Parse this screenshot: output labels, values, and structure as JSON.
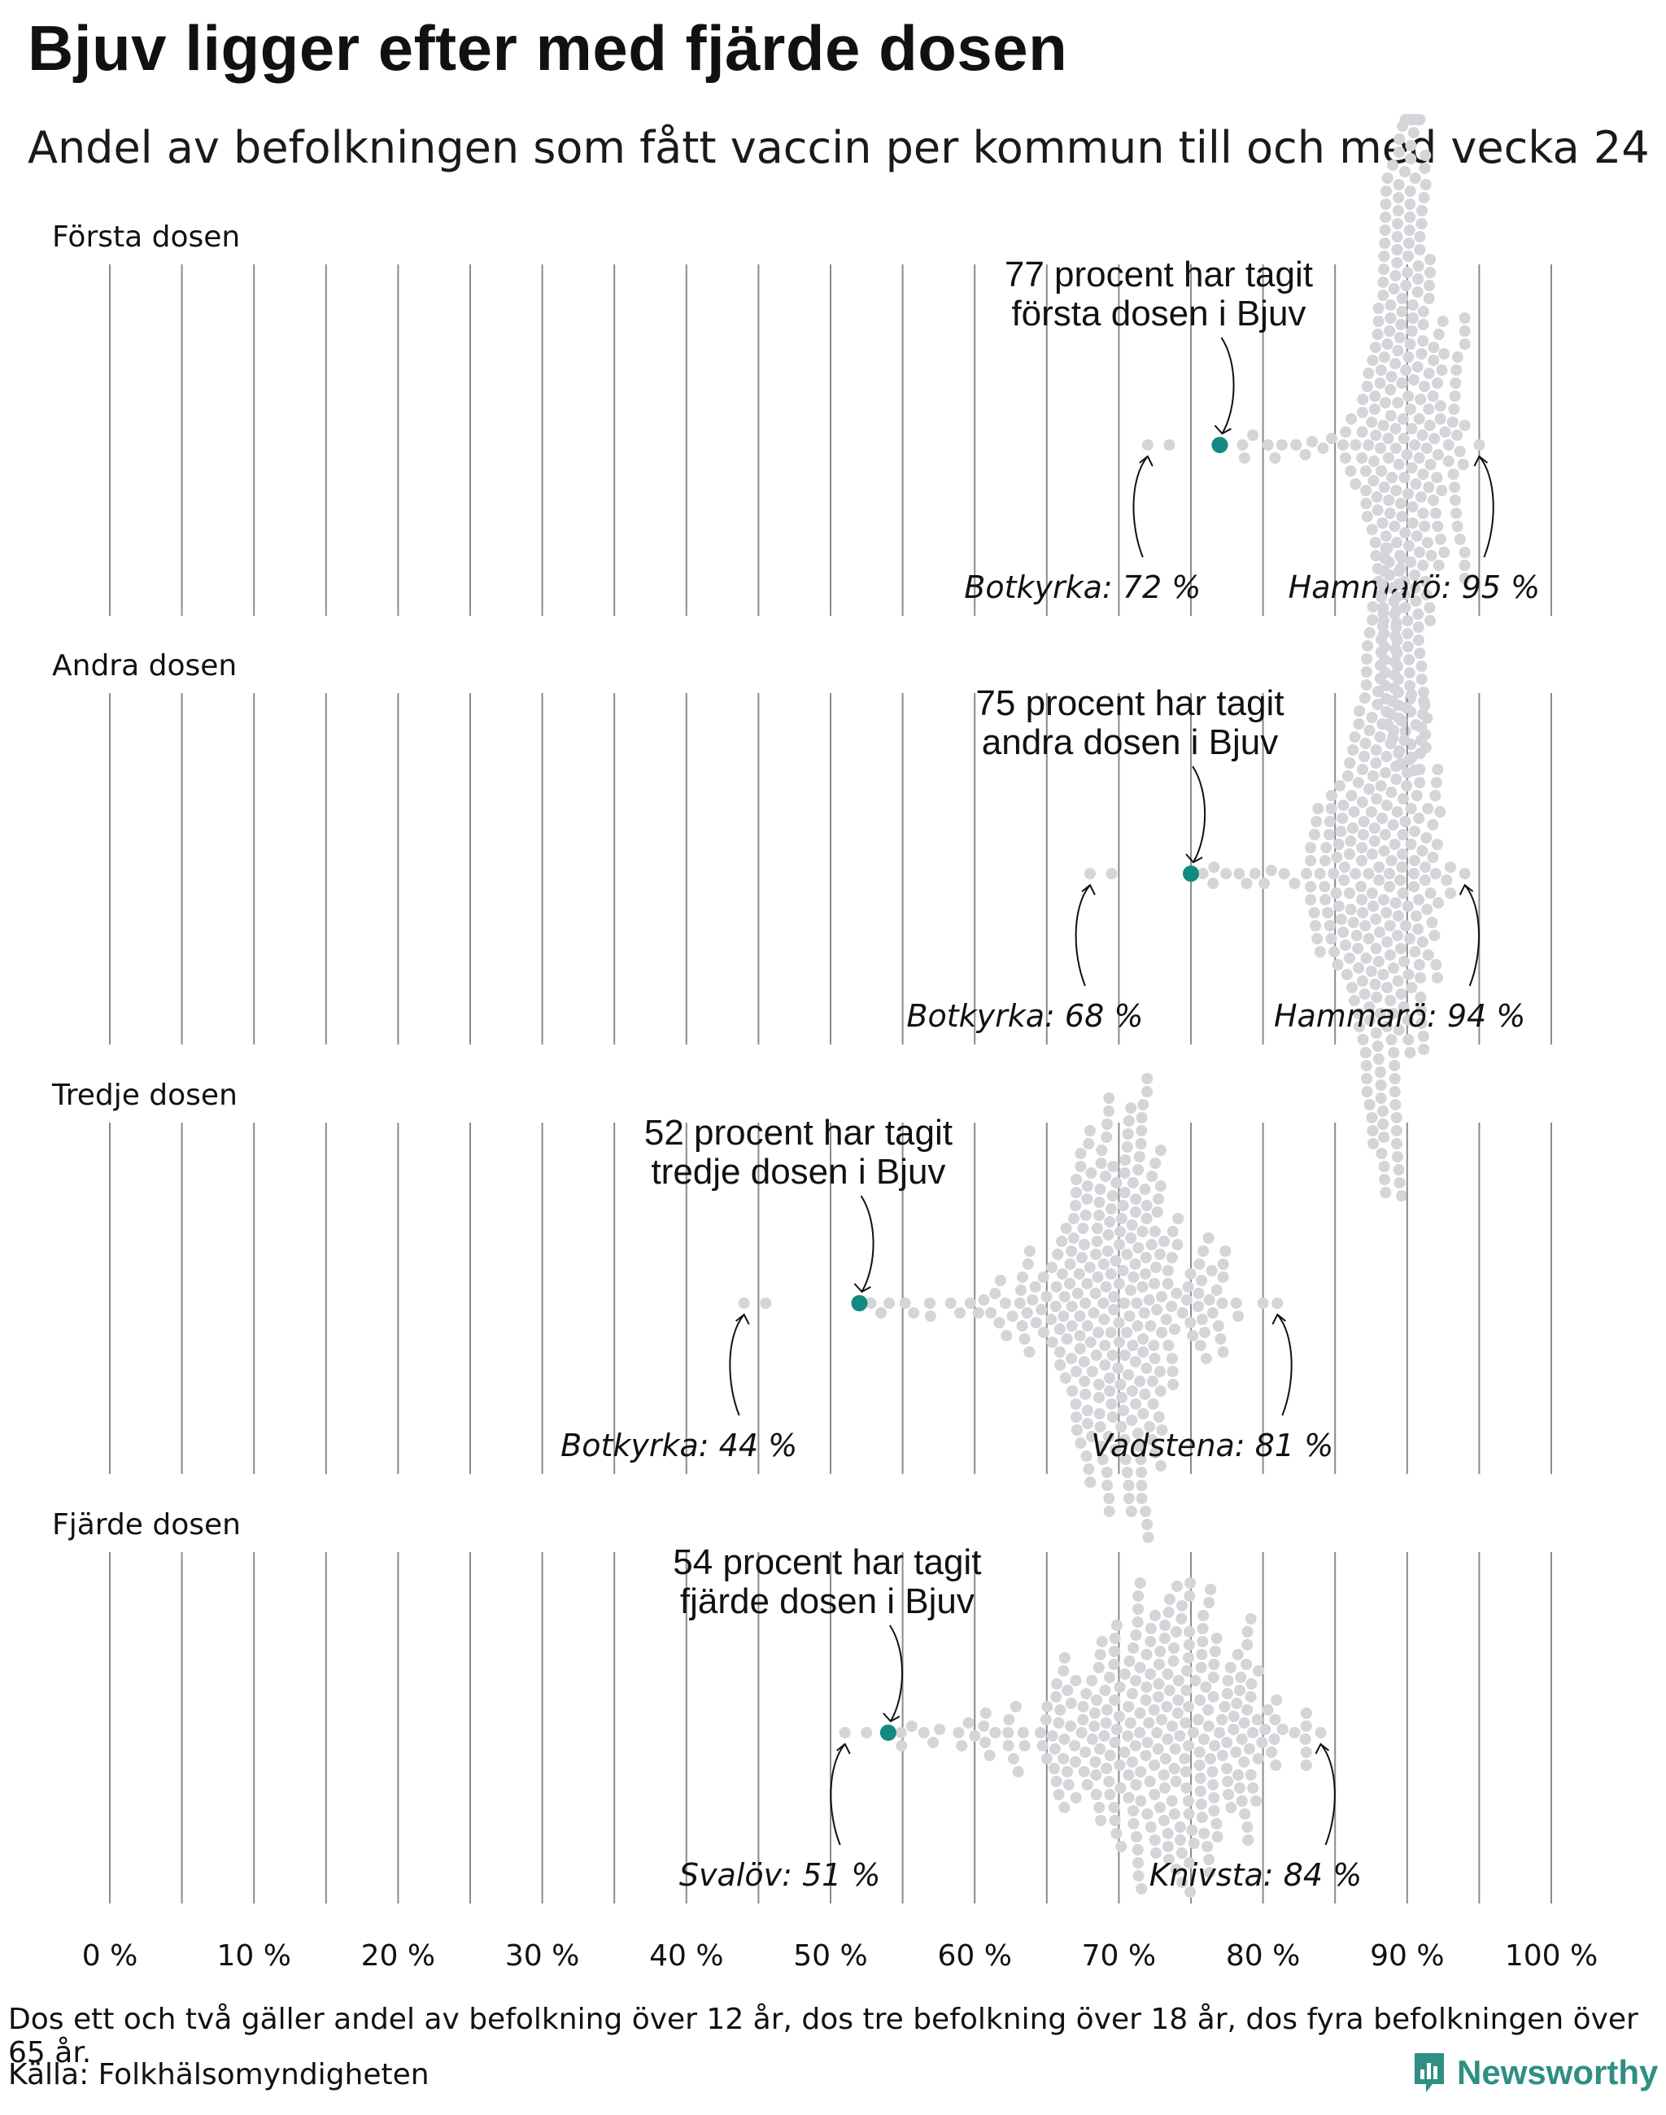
{
  "title": "Bjuv ligger efter med fjärde dosen",
  "subtitle": "Andel av befolkningen som fått vaccin per kommun till och med vecka 24",
  "footnote": "Dos ett och två gäller andel av befolkning över 12 år, dos tre befolkning över 18 år, dos fyra befolkningen över 65 år.",
  "source": "Källa: Folkhälsomyndigheten",
  "brand": "Newsworthy",
  "colors": {
    "highlight": "#138a80",
    "dots": "#d4d4d9",
    "grid": "#8a8a8a",
    "text": "#111111"
  },
  "chart_data": {
    "type": "scatter",
    "subtype": "beeswarm",
    "x_ticks": [
      0,
      10,
      20,
      30,
      40,
      50,
      60,
      70,
      80,
      90,
      100
    ],
    "x_tick_labels": [
      "0 %",
      "10 %",
      "20 %",
      "30 %",
      "40 %",
      "50 %",
      "60 %",
      "70 %",
      "80 %",
      "90 %",
      "100 %"
    ],
    "xlim": [
      0,
      100
    ],
    "unit": "procent av befolkningen",
    "panels": [
      {
        "label": "Första dosen",
        "highlight_name": "Bjuv",
        "highlight_value": 77,
        "annotation_line1": "77 procent har tagit",
        "annotation_line2": "första dosen i Bjuv",
        "min_label": "Botkyrka: 72 %",
        "min_value": 72,
        "max_label": "Hammarö: 95 %",
        "max_value": 95,
        "distribution_center": 90,
        "distribution_spread": 1.9,
        "count": 290
      },
      {
        "label": "Andra dosen",
        "highlight_name": "Bjuv",
        "highlight_value": 75,
        "annotation_line1": "75 procent har tagit",
        "annotation_line2": "andra dosen i Bjuv",
        "min_label": "Botkyrka: 68 %",
        "min_value": 68,
        "max_label": "Hammarö: 94 %",
        "max_value": 94,
        "distribution_center": 88.5,
        "distribution_spread": 2.0,
        "count": 290
      },
      {
        "label": "Tredje dosen",
        "highlight_name": "Bjuv",
        "highlight_value": 52,
        "annotation_line1": "52 procent har tagit",
        "annotation_line2": "tredje dosen i Bjuv",
        "min_label": "Botkyrka: 44 %",
        "min_value": 44,
        "max_label": "Vadstena: 81 %",
        "max_value": 81,
        "distribution_center": 70,
        "distribution_spread": 3.6,
        "count": 290
      },
      {
        "label": "Fjärde dosen",
        "highlight_name": "Bjuv",
        "highlight_value": 54,
        "annotation_line1": "54 procent har tagit",
        "annotation_line2": "fjärde dosen i Bjuv",
        "min_label": "Svalöv: 51 %",
        "min_value": 51,
        "max_label": "Knivsta: 84 %",
        "max_value": 84,
        "distribution_center": 73,
        "distribution_spread": 5.0,
        "count": 290
      }
    ]
  }
}
